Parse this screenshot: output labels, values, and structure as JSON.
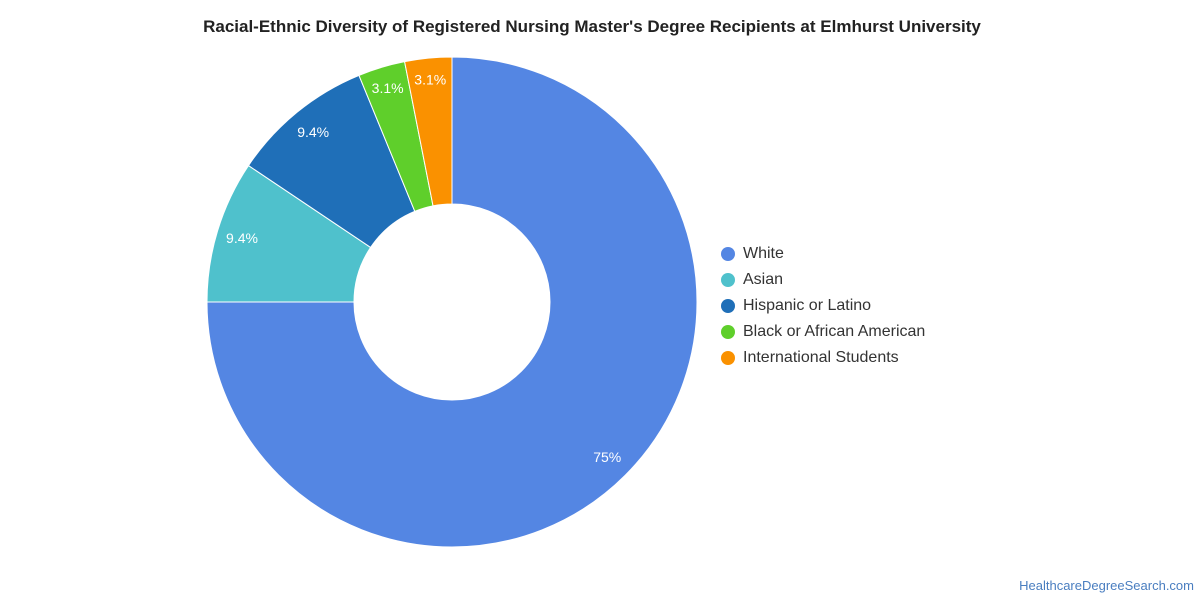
{
  "chart_data": {
    "type": "pie",
    "title": "Racial-Ethnic Diversity of Registered Nursing Master's Degree Recipients at Elmhurst University",
    "donut": true,
    "legend_position": "right",
    "slices": [
      {
        "name": "White",
        "value": 75,
        "label": "75%",
        "color": "#5486e3"
      },
      {
        "name": "Asian",
        "value": 9.4,
        "label": "9.4%",
        "color": "#4fc1cc"
      },
      {
        "name": "Hispanic or Latino",
        "value": 9.4,
        "label": "9.4%",
        "color": "#1f6fb8"
      },
      {
        "name": "Black or African American",
        "value": 3.1,
        "label": "3.1%",
        "color": "#5fcf2b"
      },
      {
        "name": "International Students",
        "value": 3.1,
        "label": "3.1%",
        "color": "#fa9100"
      }
    ]
  },
  "credit": "HealthcareDegreeSearch.com"
}
